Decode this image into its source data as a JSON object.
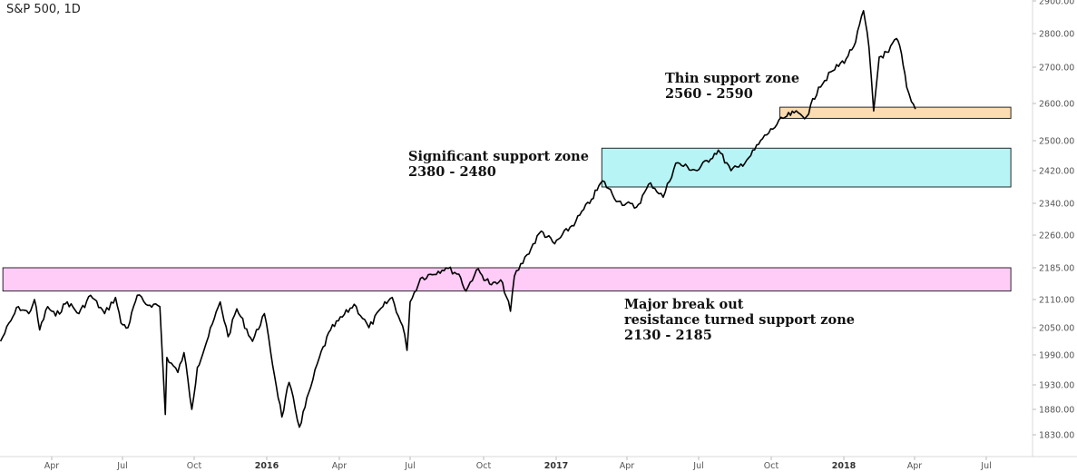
{
  "chart_data": {
    "type": "line",
    "title": "S&P 500, 1D",
    "y_ticks": [
      {
        "label": "2900.00",
        "value": 2900
      },
      {
        "label": "2800.00",
        "value": 2800
      },
      {
        "label": "2700.00",
        "value": 2700
      },
      {
        "label": "2600.00",
        "value": 2600
      },
      {
        "label": "2500.00",
        "value": 2500
      },
      {
        "label": "2420.00",
        "value": 2420
      },
      {
        "label": "2340.00",
        "value": 2340
      },
      {
        "label": "2260.00",
        "value": 2260
      },
      {
        "label": "2185.00",
        "value": 2185
      },
      {
        "label": "2110.00",
        "value": 2110
      },
      {
        "label": "2050.00",
        "value": 2050
      },
      {
        "label": "1990.00",
        "value": 1990
      },
      {
        "label": "1930.00",
        "value": 1930
      },
      {
        "label": "1880.00",
        "value": 1880
      },
      {
        "label": "1830.00",
        "value": 1830
      }
    ],
    "x_ticks": [
      {
        "label": "Apr",
        "date": "2015-04-01",
        "year": false
      },
      {
        "label": "Jul",
        "date": "2015-07-01",
        "year": false
      },
      {
        "label": "Oct",
        "date": "2015-10-01",
        "year": false
      },
      {
        "label": "2016",
        "date": "2016-01-01",
        "year": true
      },
      {
        "label": "Apr",
        "date": "2016-04-01",
        "year": false
      },
      {
        "label": "Jul",
        "date": "2016-07-01",
        "year": false
      },
      {
        "label": "Oct",
        "date": "2016-10-01",
        "year": false
      },
      {
        "label": "2017",
        "date": "2017-01-01",
        "year": true
      },
      {
        "label": "Apr",
        "date": "2017-04-01",
        "year": false
      },
      {
        "label": "Jul",
        "date": "2017-07-01",
        "year": false
      },
      {
        "label": "Oct",
        "date": "2017-10-01",
        "year": false
      },
      {
        "label": "2018",
        "date": "2018-01-01",
        "year": true
      },
      {
        "label": "Apr",
        "date": "2018-04-01",
        "year": false
      },
      {
        "label": "Jul",
        "date": "2018-07-01",
        "year": false
      }
    ],
    "series": [
      {
        "color": "#000000",
        "points": [
          [
            "2015-01-02",
            2020
          ],
          [
            "2015-01-20",
            2065
          ],
          [
            "2015-02-02",
            2095
          ],
          [
            "2015-02-20",
            2080
          ],
          [
            "2015-03-02",
            2110
          ],
          [
            "2015-03-11",
            2045
          ],
          [
            "2015-03-25",
            2095
          ],
          [
            "2015-04-06",
            2075
          ],
          [
            "2015-04-21",
            2105
          ],
          [
            "2015-05-06",
            2080
          ],
          [
            "2015-05-21",
            2120
          ],
          [
            "2015-06-08",
            2080
          ],
          [
            "2015-06-22",
            2115
          ],
          [
            "2015-06-29",
            2060
          ],
          [
            "2015-07-08",
            2050
          ],
          [
            "2015-07-20",
            2120
          ],
          [
            "2015-07-31",
            2100
          ],
          [
            "2015-08-10",
            2100
          ],
          [
            "2015-08-18",
            2095
          ],
          [
            "2015-08-25",
            1870
          ],
          [
            "2015-08-27",
            1985
          ],
          [
            "2015-09-10",
            1955
          ],
          [
            "2015-09-18",
            1995
          ],
          [
            "2015-09-28",
            1880
          ],
          [
            "2015-10-05",
            1965
          ],
          [
            "2015-10-19",
            2030
          ],
          [
            "2015-11-03",
            2105
          ],
          [
            "2015-11-13",
            2030
          ],
          [
            "2015-11-24",
            2090
          ],
          [
            "2015-12-14",
            2020
          ],
          [
            "2015-12-29",
            2080
          ],
          [
            "2016-01-06",
            1995
          ],
          [
            "2016-01-20",
            1865
          ],
          [
            "2016-01-29",
            1935
          ],
          [
            "2016-02-11",
            1845
          ],
          [
            "2016-02-25",
            1925
          ],
          [
            "2016-03-07",
            1985
          ],
          [
            "2016-03-21",
            2045
          ],
          [
            "2016-04-20",
            2100
          ],
          [
            "2016-05-09",
            2050
          ],
          [
            "2016-05-27",
            2095
          ],
          [
            "2016-06-08",
            2115
          ],
          [
            "2016-06-24",
            2035
          ],
          [
            "2016-06-27",
            2000
          ],
          [
            "2016-07-01",
            2105
          ],
          [
            "2016-07-14",
            2160
          ],
          [
            "2016-08-15",
            2185
          ],
          [
            "2016-08-31",
            2170
          ],
          [
            "2016-09-09",
            2130
          ],
          [
            "2016-09-22",
            2180
          ],
          [
            "2016-10-11",
            2145
          ],
          [
            "2016-10-25",
            2150
          ],
          [
            "2016-11-04",
            2085
          ],
          [
            "2016-11-09",
            2165
          ],
          [
            "2016-11-25",
            2215
          ],
          [
            "2016-12-13",
            2270
          ],
          [
            "2016-12-30",
            2240
          ],
          [
            "2017-01-26",
            2295
          ],
          [
            "2017-02-15",
            2350
          ],
          [
            "2017-03-01",
            2395
          ],
          [
            "2017-03-21",
            2345
          ],
          [
            "2017-04-13",
            2330
          ],
          [
            "2017-05-01",
            2390
          ],
          [
            "2017-05-17",
            2355
          ],
          [
            "2017-06-02",
            2440
          ],
          [
            "2017-06-29",
            2420
          ],
          [
            "2017-07-26",
            2475
          ],
          [
            "2017-08-11",
            2420
          ],
          [
            "2017-08-21",
            2430
          ],
          [
            "2017-09-05",
            2460
          ],
          [
            "2017-09-20",
            2505
          ],
          [
            "2017-10-16",
            2560
          ],
          [
            "2017-10-30",
            2575
          ],
          [
            "2017-11-15",
            2565
          ],
          [
            "2017-11-30",
            2645
          ],
          [
            "2017-12-18",
            2690
          ],
          [
            "2018-01-04",
            2725
          ],
          [
            "2018-01-16",
            2775
          ],
          [
            "2018-01-26",
            2870
          ],
          [
            "2018-02-02",
            2760
          ],
          [
            "2018-02-08",
            2580
          ],
          [
            "2018-02-15",
            2730
          ],
          [
            "2018-02-27",
            2745
          ],
          [
            "2018-03-09",
            2785
          ],
          [
            "2018-03-13",
            2765
          ],
          [
            "2018-03-22",
            2645
          ],
          [
            "2018-03-28",
            2605
          ],
          [
            "2018-04-02",
            2585
          ]
        ]
      }
    ],
    "zones": [
      {
        "label_lines": [
          "Major break out",
          "resistance turned support zone",
          "2130 - 2185"
        ],
        "low": 2130,
        "high": 2185,
        "start": "2015-01-06",
        "end": "2018-07-31",
        "color": "#ffcbf7"
      },
      {
        "label_lines": [
          "Significant support zone",
          "2380 - 2480"
        ],
        "low": 2380,
        "high": 2480,
        "start": "2017-02-28",
        "end": "2018-07-31",
        "color": "#b6f4f5"
      },
      {
        "label_lines": [
          "Thin support zone",
          "2560 - 2590"
        ],
        "low": 2560,
        "high": 2590,
        "start": "2017-10-12",
        "end": "2018-07-31",
        "color": "#fddcaf"
      }
    ],
    "grid": false,
    "legend": "none"
  }
}
